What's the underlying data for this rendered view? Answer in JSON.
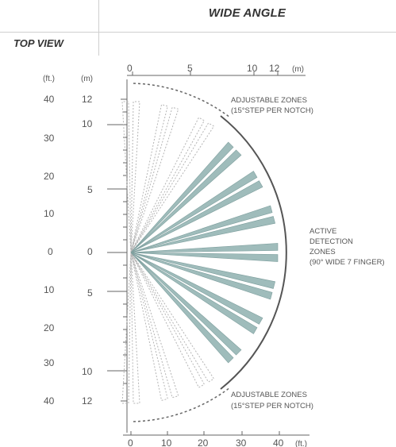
{
  "header": {
    "title": "WIDE ANGLE",
    "view_label": "TOP VIEW"
  },
  "axes": {
    "top_m_ticks": [
      "0",
      "5",
      "10",
      "12"
    ],
    "top_unit": "(m)",
    "left_ft_unit": "(ft.)",
    "left_m_unit": "(m)",
    "left_ft_ticks": [
      "40",
      "30",
      "20",
      "10",
      "0",
      "10",
      "20",
      "30",
      "40"
    ],
    "left_m_ticks": [
      "12",
      "10",
      "5",
      "0",
      "5",
      "10",
      "12"
    ],
    "bottom_ft_ticks": [
      "0",
      "10",
      "20",
      "30",
      "40"
    ],
    "bottom_unit": "(ft.)"
  },
  "annotations": {
    "top_zone_line1": "ADJUSTABLE ZONES",
    "top_zone_line2": "(15°STEP  PER  NOTCH)",
    "active_line1": "ACTIVE",
    "active_line2": "DETECTION",
    "active_line3": "ZONES",
    "active_line4": "(90° WIDE 7 FINGER)",
    "bottom_zone_line1": "ADJUSTABLE ZONES",
    "bottom_zone_line2": "(15°STEP  PER  NOTCH)"
  },
  "colors": {
    "active_finger": "#9fbcbb",
    "active_finger_edge": "#7e9f9e",
    "arc": "#555555",
    "adjustable_zone": "#b5b5b5"
  },
  "diagram": {
    "active_finger_count": 7,
    "active_finger_angles_deg": [
      -45,
      -30,
      -15,
      0,
      15,
      30,
      45
    ],
    "adjustable_finger_angles_deg": [
      -90,
      -75,
      -60,
      60,
      75,
      90
    ]
  }
}
